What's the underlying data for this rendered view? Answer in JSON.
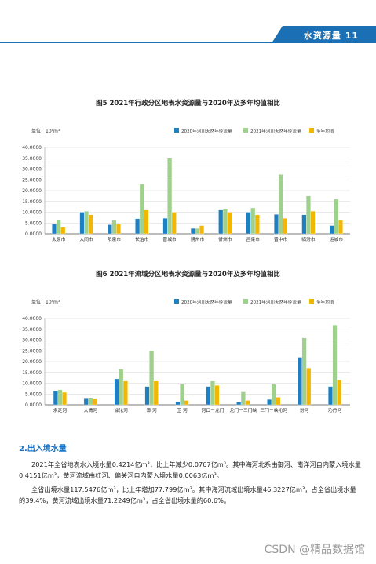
{
  "header": {
    "title": "水资源量  11",
    "bar_color": "#1a6fb5"
  },
  "charts": [
    {
      "title": "图5  2021年行政分区地表水资源量与2020年及多年均值相比",
      "unit_label": "单位：10⁸m³",
      "legend": [
        "2020年河川天然年径流量",
        "2021年河川天然年径流量",
        "多年均值"
      ],
      "colors": [
        "#1f7fc3",
        "#9fd08d",
        "#f2b705"
      ],
      "chart_data": {
        "type": "bar",
        "categories": [
          "太原市",
          "大同市",
          "阳泉市",
          "长治市",
          "晋城市",
          "朔州市",
          "忻州市",
          "吕梁市",
          "晋中市",
          "临汾市",
          "运城市"
        ],
        "series": [
          {
            "name": "2020年河川天然年径流量",
            "values": [
              4.5,
              10.0,
              4.2,
              7.0,
              7.2,
              2.5,
              11.0,
              10.0,
              9.0,
              8.8,
              3.8
            ]
          },
          {
            "name": "2021年河川天然年径流量",
            "values": [
              6.5,
              10.5,
              6.2,
              23.0,
              35.0,
              2.5,
              11.5,
              12.0,
              27.5,
              17.5,
              16.0
            ]
          },
          {
            "name": "多年均值",
            "values": [
              3.0,
              8.8,
              4.5,
              11.0,
              10.0,
              3.8,
              10.0,
              8.8,
              7.2,
              10.5,
              6.2
            ]
          }
        ],
        "ylim": [
          0,
          40
        ],
        "yticks": [
          "0.0000",
          "5.0000",
          "10.0000",
          "15.0000",
          "20.0000",
          "25.0000",
          "30.0000",
          "35.0000",
          "40.0000"
        ]
      }
    },
    {
      "title": "图6  2021年流域分区地表水资源量与2020年及多年均值相比",
      "unit_label": "单位：10⁸m³",
      "legend": [
        "2020年河川天然年径流量",
        "2021年河川天然年径流量",
        "多年均值"
      ],
      "colors": [
        "#1f7fc3",
        "#9fd08d",
        "#f2b705"
      ],
      "chart_data": {
        "type": "bar",
        "categories": [
          "永定河",
          "大清河",
          "滹沱河",
          "漳 河",
          "卫 河",
          "河口－龙门",
          "龙门－三门峡",
          "三门－峡沁河",
          "汾河",
          "沁丹河"
        ],
        "series": [
          {
            "name": "2020年河川天然年径流量",
            "values": [
              6.5,
              2.8,
              12.0,
              8.5,
              1.5,
              8.5,
              1.2,
              2.5,
              22.0,
              8.5
            ]
          },
          {
            "name": "2021年河川天然年径流量",
            "values": [
              7.0,
              3.0,
              16.5,
              25.0,
              9.5,
              11.0,
              6.0,
              9.5,
              31.0,
              37.0
            ]
          },
          {
            "name": "多年均值",
            "values": [
              5.8,
              2.6,
              11.0,
              11.0,
              2.0,
              9.0,
              2.0,
              3.5,
              17.0,
              11.5
            ]
          }
        ],
        "ylim": [
          0,
          40
        ],
        "yticks": [
          "0.0000",
          "5.0000",
          "10.0000",
          "15.0000",
          "20.0000",
          "25.0000",
          "30.0000",
          "35.0000",
          "40.0000"
        ]
      }
    }
  ],
  "section": {
    "heading": "2.出入境水量",
    "para1": "2021年全省地表水入境水量0.4214亿m³，比上年减少0.0767亿m³。其中海河北系由御河、南洋河自内蒙入境水量0.4151亿m³，黄河流域由红河、偏关河自内蒙入境水量0.0063亿m³。",
    "para2": "全省出境水量117.5476亿m³，比上年增加77.799亿m³。其中海河流域出境水量46.3227亿m³，占全省出境水量的39.4%，黄河流域出境水量71.2249亿m³，占全省出境水量的60.6%。"
  },
  "watermark": "CSDN @精品数据馆"
}
